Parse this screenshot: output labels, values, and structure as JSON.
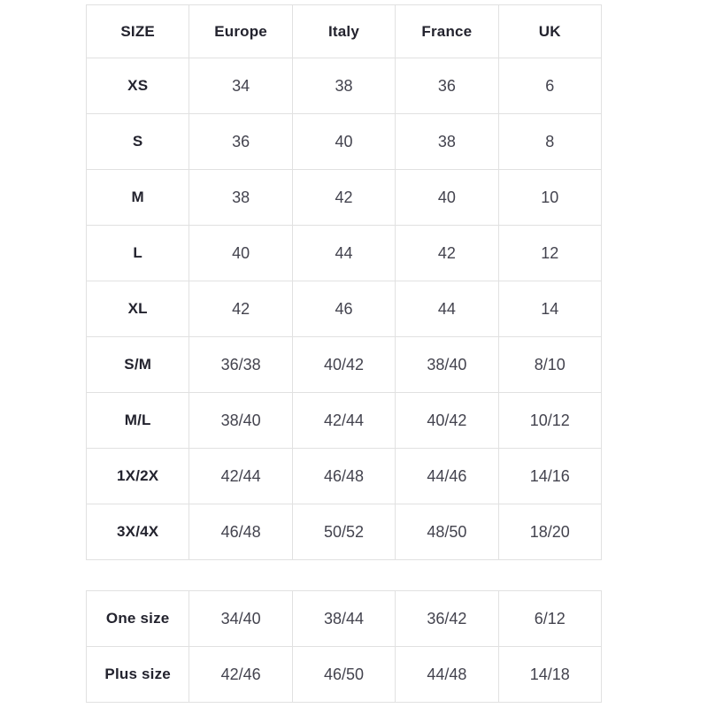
{
  "colors": {
    "background": "#ffffff",
    "border": "#e1e1e1",
    "header_text": "#23232e",
    "cell_text": "#43434e"
  },
  "chart_data": [
    {
      "type": "table",
      "columns": [
        "SIZE",
        "Europe",
        "Italy",
        "France",
        "UK"
      ],
      "rows": [
        [
          "XS",
          "34",
          "38",
          "36",
          "6"
        ],
        [
          "S",
          "36",
          "40",
          "38",
          "8"
        ],
        [
          "M",
          "38",
          "42",
          "40",
          "10"
        ],
        [
          "L",
          "40",
          "44",
          "42",
          "12"
        ],
        [
          "XL",
          "42",
          "46",
          "44",
          "14"
        ],
        [
          "S/M",
          "36/38",
          "40/42",
          "38/40",
          "8/10"
        ],
        [
          "M/L",
          "38/40",
          "42/44",
          "40/42",
          "10/12"
        ],
        [
          "1X/2X",
          "42/44",
          "46/48",
          "44/46",
          "14/16"
        ],
        [
          "3X/4X",
          "46/48",
          "50/52",
          "48/50",
          "18/20"
        ]
      ]
    },
    {
      "type": "table",
      "rows": [
        [
          "One size",
          "34/40",
          "38/44",
          "36/42",
          "6/12"
        ],
        [
          "Plus size",
          "42/46",
          "46/50",
          "44/48",
          "14/18"
        ]
      ]
    }
  ]
}
